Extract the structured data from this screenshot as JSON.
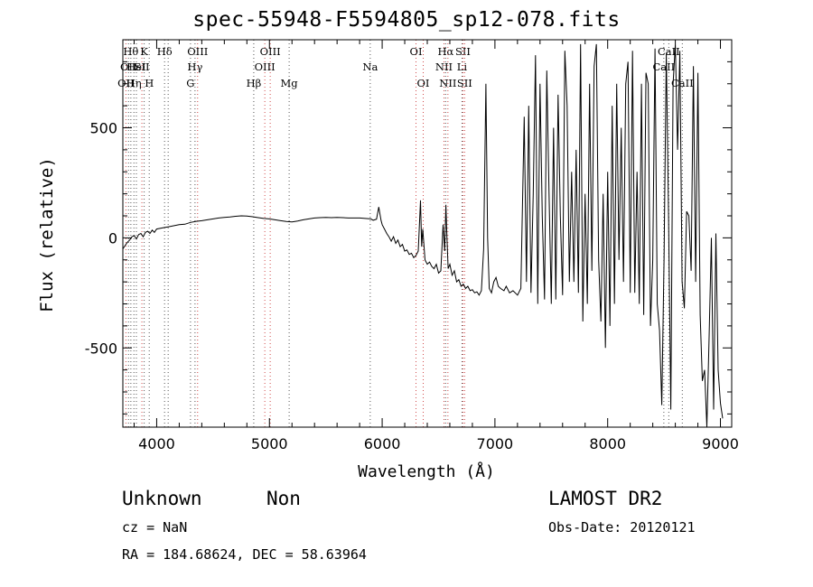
{
  "chart_data": {
    "type": "line",
    "title": "spec-55948-F5594805_sp12-078.fits",
    "xlabel": "Wavelength (Å)",
    "ylabel": "Flux (relative)",
    "xlim": [
      3700,
      9100
    ],
    "ylim": [
      -860,
      900
    ],
    "x_ticks": [
      4000,
      5000,
      6000,
      7000,
      8000,
      9000
    ],
    "y_ticks": [
      -500,
      0,
      500
    ],
    "series": [
      {
        "color": "#000000",
        "points": [
          [
            3700,
            -50
          ],
          [
            3720,
            -35
          ],
          [
            3740,
            -20
          ],
          [
            3760,
            -10
          ],
          [
            3780,
            5
          ],
          [
            3800,
            10
          ],
          [
            3820,
            -5
          ],
          [
            3840,
            15
          ],
          [
            3860,
            20
          ],
          [
            3880,
            5
          ],
          [
            3900,
            25
          ],
          [
            3920,
            30
          ],
          [
            3940,
            20
          ],
          [
            3960,
            35
          ],
          [
            3980,
            25
          ],
          [
            4000,
            40
          ],
          [
            4050,
            45
          ],
          [
            4100,
            50
          ],
          [
            4150,
            55
          ],
          [
            4200,
            60
          ],
          [
            4250,
            62
          ],
          [
            4300,
            70
          ],
          [
            4350,
            75
          ],
          [
            4400,
            78
          ],
          [
            4450,
            82
          ],
          [
            4500,
            86
          ],
          [
            4550,
            90
          ],
          [
            4600,
            93
          ],
          [
            4650,
            95
          ],
          [
            4700,
            98
          ],
          [
            4750,
            100
          ],
          [
            4800,
            99
          ],
          [
            4850,
            96
          ],
          [
            4900,
            92
          ],
          [
            4950,
            88
          ],
          [
            5000,
            86
          ],
          [
            5050,
            82
          ],
          [
            5100,
            78
          ],
          [
            5150,
            74
          ],
          [
            5200,
            72
          ],
          [
            5250,
            76
          ],
          [
            5300,
            82
          ],
          [
            5350,
            86
          ],
          [
            5400,
            90
          ],
          [
            5450,
            92
          ],
          [
            5500,
            93
          ],
          [
            5550,
            92
          ],
          [
            5600,
            93
          ],
          [
            5650,
            92
          ],
          [
            5700,
            90
          ],
          [
            5750,
            90
          ],
          [
            5800,
            90
          ],
          [
            5850,
            88
          ],
          [
            5900,
            86
          ],
          [
            5920,
            80
          ],
          [
            5950,
            85
          ],
          [
            5970,
            140
          ],
          [
            5990,
            80
          ],
          [
            6000,
            60
          ],
          [
            6020,
            40
          ],
          [
            6040,
            20
          ],
          [
            6060,
            5
          ],
          [
            6080,
            -15
          ],
          [
            6100,
            5
          ],
          [
            6120,
            -25
          ],
          [
            6140,
            -10
          ],
          [
            6160,
            -40
          ],
          [
            6180,
            -30
          ],
          [
            6200,
            -60
          ],
          [
            6220,
            -55
          ],
          [
            6240,
            -75
          ],
          [
            6260,
            -70
          ],
          [
            6280,
            -90
          ],
          [
            6300,
            -80
          ],
          [
            6320,
            -60
          ],
          [
            6340,
            170
          ],
          [
            6350,
            -40
          ],
          [
            6360,
            40
          ],
          [
            6380,
            -100
          ],
          [
            6400,
            -120
          ],
          [
            6420,
            -110
          ],
          [
            6440,
            -130
          ],
          [
            6460,
            -140
          ],
          [
            6480,
            -120
          ],
          [
            6500,
            -160
          ],
          [
            6520,
            -150
          ],
          [
            6540,
            60
          ],
          [
            6555,
            -60
          ],
          [
            6565,
            150
          ],
          [
            6575,
            0
          ],
          [
            6585,
            -140
          ],
          [
            6600,
            -120
          ],
          [
            6620,
            -170
          ],
          [
            6640,
            -150
          ],
          [
            6660,
            -200
          ],
          [
            6680,
            -190
          ],
          [
            6700,
            -220
          ],
          [
            6720,
            -210
          ],
          [
            6740,
            -230
          ],
          [
            6760,
            -220
          ],
          [
            6780,
            -240
          ],
          [
            6800,
            -235
          ],
          [
            6820,
            -250
          ],
          [
            6840,
            -245
          ],
          [
            6860,
            -260
          ],
          [
            6880,
            -240
          ],
          [
            6900,
            -50
          ],
          [
            6920,
            700
          ],
          [
            6935,
            0
          ],
          [
            6950,
            -230
          ],
          [
            6970,
            -250
          ],
          [
            6990,
            -200
          ],
          [
            7010,
            -180
          ],
          [
            7030,
            -220
          ],
          [
            7050,
            -230
          ],
          [
            7080,
            -240
          ],
          [
            7100,
            -220
          ],
          [
            7130,
            -250
          ],
          [
            7160,
            -240
          ],
          [
            7200,
            -260
          ],
          [
            7230,
            -230
          ],
          [
            7260,
            550
          ],
          [
            7280,
            -200
          ],
          [
            7300,
            600
          ],
          [
            7320,
            -250
          ],
          [
            7340,
            200
          ],
          [
            7360,
            830
          ],
          [
            7380,
            -300
          ],
          [
            7400,
            700
          ],
          [
            7420,
            100
          ],
          [
            7440,
            -280
          ],
          [
            7460,
            760
          ],
          [
            7480,
            200
          ],
          [
            7500,
            -300
          ],
          [
            7520,
            500
          ],
          [
            7540,
            -280
          ],
          [
            7560,
            650
          ],
          [
            7580,
            100
          ],
          [
            7600,
            -260
          ],
          [
            7620,
            850
          ],
          [
            7640,
            600
          ],
          [
            7660,
            -200
          ],
          [
            7680,
            300
          ],
          [
            7700,
            -200
          ],
          [
            7720,
            400
          ],
          [
            7740,
            -250
          ],
          [
            7760,
            880
          ],
          [
            7780,
            -380
          ],
          [
            7800,
            200
          ],
          [
            7820,
            -300
          ],
          [
            7840,
            700
          ],
          [
            7860,
            -150
          ],
          [
            7880,
            780
          ],
          [
            7900,
            880
          ],
          [
            7920,
            -100
          ],
          [
            7940,
            -380
          ],
          [
            7960,
            200
          ],
          [
            7980,
            -500
          ],
          [
            8000,
            300
          ],
          [
            8020,
            -400
          ],
          [
            8040,
            600
          ],
          [
            8060,
            -300
          ],
          [
            8080,
            700
          ],
          [
            8100,
            -100
          ],
          [
            8120,
            500
          ],
          [
            8140,
            -200
          ],
          [
            8160,
            700
          ],
          [
            8180,
            800
          ],
          [
            8200,
            -250
          ],
          [
            8220,
            850
          ],
          [
            8240,
            -250
          ],
          [
            8260,
            300
          ],
          [
            8280,
            -300
          ],
          [
            8300,
            700
          ],
          [
            8320,
            -350
          ],
          [
            8340,
            750
          ],
          [
            8360,
            700
          ],
          [
            8380,
            -400
          ],
          [
            8400,
            -100
          ],
          [
            8420,
            860
          ],
          [
            8440,
            -300
          ],
          [
            8460,
            -420
          ],
          [
            8480,
            -760
          ],
          [
            8500,
            -100
          ],
          [
            8520,
            840
          ],
          [
            8540,
            100
          ],
          [
            8560,
            -780
          ],
          [
            8580,
            700
          ],
          [
            8600,
            880
          ],
          [
            8620,
            400
          ],
          [
            8640,
            850
          ],
          [
            8660,
            -200
          ],
          [
            8680,
            -320
          ],
          [
            8700,
            120
          ],
          [
            8720,
            100
          ],
          [
            8740,
            -150
          ],
          [
            8760,
            780
          ],
          [
            8780,
            -200
          ],
          [
            8800,
            750
          ],
          [
            8820,
            -350
          ],
          [
            8840,
            -650
          ],
          [
            8860,
            -600
          ],
          [
            8880,
            -860
          ],
          [
            8900,
            -450
          ],
          [
            8920,
            0
          ],
          [
            8940,
            -780
          ],
          [
            8960,
            20
          ],
          [
            8980,
            -600
          ],
          [
            9000,
            -750
          ],
          [
            9020,
            -820
          ]
        ]
      }
    ],
    "line_markers": [
      {
        "wavelength": 3727,
        "color": "#d04a4a",
        "labels": [
          {
            "row": 2,
            "text": "OII"
          }
        ]
      },
      {
        "wavelength": 3750,
        "color": "#555555",
        "labels": [
          {
            "row": 1,
            "text": "OII"
          }
        ]
      },
      {
        "wavelength": 3771,
        "color": "#555555",
        "labels": [
          {
            "row": 0,
            "text": "Hθ"
          }
        ]
      },
      {
        "wavelength": 3798,
        "color": "#555555",
        "labels": [
          {
            "row": 2,
            "text": "Hη"
          }
        ]
      },
      {
        "wavelength": 3820,
        "color": "#555555",
        "labels": [
          {
            "row": 1,
            "text": "HeI"
          }
        ]
      },
      {
        "wavelength": 3869,
        "color": "#d04a4a",
        "labels": [
          {
            "row": 1,
            "text": "SII"
          }
        ]
      },
      {
        "wavelength": 3889,
        "color": "#555555",
        "labels": [
          {
            "row": 0,
            "text": "K"
          }
        ]
      },
      {
        "wavelength": 3934,
        "color": "#555555",
        "labels": [
          {
            "row": 2,
            "text": "H"
          }
        ]
      },
      {
        "wavelength": 4070,
        "color": "#555555",
        "labels": [
          {
            "row": 0,
            "text": "Hδ"
          }
        ]
      },
      {
        "wavelength": 4102,
        "color": "#555555",
        "labels": []
      },
      {
        "wavelength": 4300,
        "color": "#555555",
        "labels": [
          {
            "row": 2,
            "text": "G"
          }
        ]
      },
      {
        "wavelength": 4340,
        "color": "#555555",
        "labels": [
          {
            "row": 1,
            "text": "Hγ"
          }
        ]
      },
      {
        "wavelength": 4363,
        "color": "#d04a4a",
        "labels": [
          {
            "row": 0,
            "text": "OIII"
          }
        ]
      },
      {
        "wavelength": 4861,
        "color": "#555555",
        "labels": [
          {
            "row": 2,
            "text": "Hβ"
          }
        ]
      },
      {
        "wavelength": 4959,
        "color": "#d04a4a",
        "labels": [
          {
            "row": 1,
            "text": "OIII"
          }
        ]
      },
      {
        "wavelength": 5007,
        "color": "#d04a4a",
        "labels": [
          {
            "row": 0,
            "text": "OIII"
          }
        ]
      },
      {
        "wavelength": 5175,
        "color": "#555555",
        "labels": [
          {
            "row": 2,
            "text": "Mg"
          }
        ]
      },
      {
        "wavelength": 5894,
        "color": "#555555",
        "labels": [
          {
            "row": 1,
            "text": "Na"
          }
        ]
      },
      {
        "wavelength": 6300,
        "color": "#d04a4a",
        "labels": [
          {
            "row": 0,
            "text": "OI"
          }
        ]
      },
      {
        "wavelength": 6364,
        "color": "#d04a4a",
        "labels": [
          {
            "row": 2,
            "text": "OI"
          }
        ]
      },
      {
        "wavelength": 6548,
        "color": "#d04a4a",
        "labels": [
          {
            "row": 1,
            "text": "NII"
          }
        ]
      },
      {
        "wavelength": 6563,
        "color": "#555555",
        "labels": [
          {
            "row": 0,
            "text": "Hα"
          }
        ]
      },
      {
        "wavelength": 6583,
        "color": "#d04a4a",
        "labels": [
          {
            "row": 2,
            "text": "NII"
          }
        ]
      },
      {
        "wavelength": 6708,
        "color": "#555555",
        "labels": [
          {
            "row": 1,
            "text": "Li"
          }
        ]
      },
      {
        "wavelength": 6716,
        "color": "#d04a4a",
        "labels": [
          {
            "row": 0,
            "text": "SII"
          }
        ]
      },
      {
        "wavelength": 6731,
        "color": "#d04a4a",
        "labels": [
          {
            "row": 2,
            "text": "SII"
          }
        ]
      },
      {
        "wavelength": 8498,
        "color": "#555555",
        "labels": [
          {
            "row": 1,
            "text": "CaII"
          }
        ]
      },
      {
        "wavelength": 8542,
        "color": "#555555",
        "labels": [
          {
            "row": 0,
            "text": "CaII"
          }
        ]
      },
      {
        "wavelength": 8662,
        "color": "#555555",
        "labels": [
          {
            "row": 2,
            "text": "CaII"
          }
        ]
      }
    ]
  },
  "footer": {
    "object_class": "Unknown",
    "object_subclass": "Non",
    "survey": "LAMOST DR2",
    "redshift_text": "cz = NaN",
    "obs_date_text": "Obs-Date: 20120121",
    "coords_text": "RA = 184.68624, DEC =  58.63964"
  }
}
